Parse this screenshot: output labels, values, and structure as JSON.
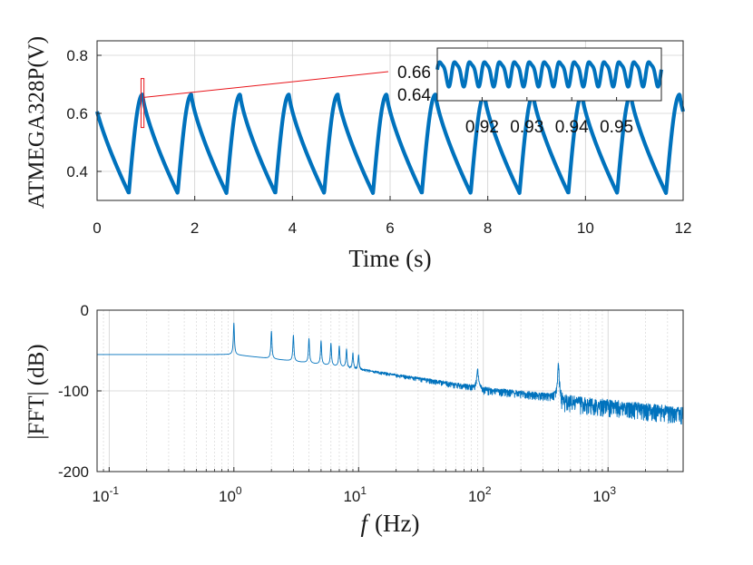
{
  "colors": {
    "series": "#0072BD",
    "annotation": "#e8141a",
    "grid": "#d0d0d0",
    "axis": "#262626"
  },
  "chart_data": [
    {
      "id": "voltage",
      "type": "line",
      "title": "",
      "xlabel": "Time (s)",
      "ylabel": "ATMEGA328P(V)",
      "xlim": [
        0,
        12
      ],
      "ylim": [
        0.3,
        0.85
      ],
      "xticks": [
        0,
        2,
        4,
        6,
        8,
        10,
        12
      ],
      "xtick_labels": [
        "0",
        "2",
        "4",
        "6",
        "8",
        "10",
        "12"
      ],
      "yticks": [
        0.4,
        0.6,
        0.8
      ],
      "ytick_labels": [
        "0.4",
        "0.6",
        "0.8"
      ],
      "grid": true,
      "series": [
        {
          "name": "ATMEGA328P",
          "period_s": 1.0,
          "peak_times_s": [
            0.93,
            1.93,
            2.93,
            3.93,
            4.93,
            5.93,
            6.93,
            7.93,
            8.93,
            9.93,
            10.93,
            11.93
          ],
          "max_v": 0.665,
          "min_v": 0.325
        }
      ],
      "zoom_box": {
        "x_range": [
          0.9,
          0.96
        ],
        "y_range": [
          0.62,
          0.72
        ]
      },
      "inset": {
        "xlim": [
          0.91,
          0.96
        ],
        "ylim": [
          0.625,
          0.675
        ],
        "xticks": [
          0.92,
          0.93,
          0.94,
          0.95
        ],
        "xtick_labels": [
          "0.92",
          "0.93",
          "0.94",
          "0.95"
        ],
        "yticks": [
          0.64,
          0.66
        ],
        "ytick_labels": [
          "0.64",
          "0.66"
        ],
        "ripple_cycles": 15,
        "ripple_amplitude_v": 0.011,
        "center_v": 0.65
      }
    },
    {
      "id": "spectrum",
      "type": "line",
      "xlabel": "f (Hz)",
      "xlabel_symbol": "f",
      "xlabel_unit": "(Hz)",
      "ylabel": "|FFT| (dB)",
      "xscale": "log",
      "xlim": [
        0.08,
        4000
      ],
      "ylim": [
        -200,
        0
      ],
      "xticks": [
        0.1,
        1,
        10,
        100,
        1000
      ],
      "xtick_labels": [
        {
          "base": "10",
          "exp": "-1"
        },
        {
          "base": "10",
          "exp": "0"
        },
        {
          "base": "10",
          "exp": "1"
        },
        {
          "base": "10",
          "exp": "2"
        },
        {
          "base": "10",
          "exp": "3"
        }
      ],
      "yticks": [
        0,
        -100,
        -200
      ],
      "ytick_labels": [
        "0",
        "-100",
        "-200"
      ],
      "grid": true,
      "baseline_db": -55,
      "harmonic_peaks": [
        {
          "f_hz": 1,
          "db": -16
        },
        {
          "f_hz": 2,
          "db": -26
        },
        {
          "f_hz": 3,
          "db": -31
        },
        {
          "f_hz": 4,
          "db": -35
        },
        {
          "f_hz": 5,
          "db": -38
        },
        {
          "f_hz": 6,
          "db": -41
        },
        {
          "f_hz": 7,
          "db": -44
        },
        {
          "f_hz": 8,
          "db": -48
        },
        {
          "f_hz": 9,
          "db": -52
        },
        {
          "f_hz": 10,
          "db": -55
        },
        {
          "f_hz": 90,
          "db": -72
        },
        {
          "f_hz": 400,
          "db": -62
        }
      ],
      "noise_floor_db": {
        "at_10hz": -72,
        "at_100hz": -95,
        "at_4000hz": -120
      }
    }
  ]
}
